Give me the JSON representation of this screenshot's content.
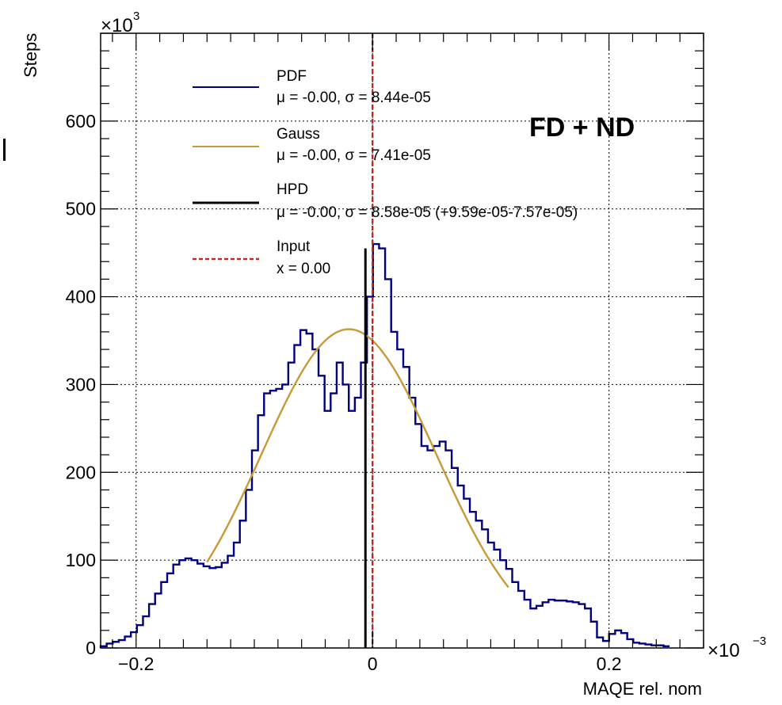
{
  "chart_data": {
    "type": "line",
    "annotation": "FD + ND",
    "xlabel": "MAQE rel. nom",
    "ylabel": "Steps",
    "x_exponent": "×10",
    "x_exponent_power": "−3",
    "y_exponent": "×10",
    "y_exponent_power": "3",
    "xlim": [
      -0.23,
      0.28
    ],
    "ylim": [
      0,
      700
    ],
    "x_ticks": [
      {
        "value": -0.2,
        "label": "−0.2"
      },
      {
        "value": 0,
        "label": "0"
      },
      {
        "value": 0.2,
        "label": "0.2"
      }
    ],
    "y_ticks": [
      {
        "value": 0,
        "label": "0"
      },
      {
        "value": 100,
        "label": "100"
      },
      {
        "value": 200,
        "label": "200"
      },
      {
        "value": 300,
        "label": "300"
      },
      {
        "value": 400,
        "label": "400"
      },
      {
        "value": 500,
        "label": "500"
      },
      {
        "value": 600,
        "label": "600"
      }
    ],
    "grid": true,
    "legend_position": "top-center",
    "legend": [
      {
        "label": "PDF",
        "stats": "μ = -0.00, σ = 8.44e-05",
        "color": "#00007f",
        "style": "solid"
      },
      {
        "label": "Gauss",
        "stats": "μ = -0.00, σ = 7.41e-05",
        "color": "#c79a36",
        "style": "solid"
      },
      {
        "label": "HPD",
        "stats": "μ = -0.00, σ = 8.58e-05 (+9.59e-05-7.57e-05)",
        "color": "#000000",
        "style": "solid"
      },
      {
        "label": "Input",
        "stats": "x = 0.00",
        "color": "#cc2222",
        "style": "dashed"
      }
    ],
    "series": [
      {
        "name": "PDF",
        "kind": "step",
        "color": "#00007f",
        "bin_edges_start": -0.23,
        "bin_width": 0.00512,
        "values": [
          2,
          5,
          7,
          9,
          13,
          18,
          26,
          36,
          50,
          62,
          75,
          85,
          95,
          100,
          102,
          100,
          96,
          93,
          91,
          92,
          97,
          105,
          120,
          145,
          180,
          225,
          265,
          290,
          293,
          295,
          300,
          325,
          345,
          362,
          358,
          340,
          310,
          270,
          290,
          325,
          300,
          270,
          285,
          325,
          400,
          460,
          455,
          420,
          360,
          340,
          320,
          285,
          255,
          230,
          225,
          230,
          235,
          225,
          205,
          185,
          170,
          155,
          145,
          135,
          120,
          112,
          100,
          90,
          75,
          65,
          55,
          45,
          48,
          52,
          55,
          54,
          54,
          53,
          52,
          50,
          45,
          30,
          12,
          8,
          16,
          20,
          17,
          10,
          6,
          5,
          4,
          3,
          3,
          2
        ]
      },
      {
        "name": "Gauss",
        "kind": "curve",
        "color": "#c79a36",
        "mean": -0.02,
        "sigma": 0.0741,
        "amplitude": 363,
        "x_range": [
          -0.14,
          0.115
        ]
      },
      {
        "name": "HPD",
        "kind": "vline",
        "color": "#000000",
        "x": -0.006,
        "y_top": 455
      },
      {
        "name": "Input",
        "kind": "vline-dashed",
        "color": "#cc2222",
        "x": 0.0
      }
    ]
  }
}
